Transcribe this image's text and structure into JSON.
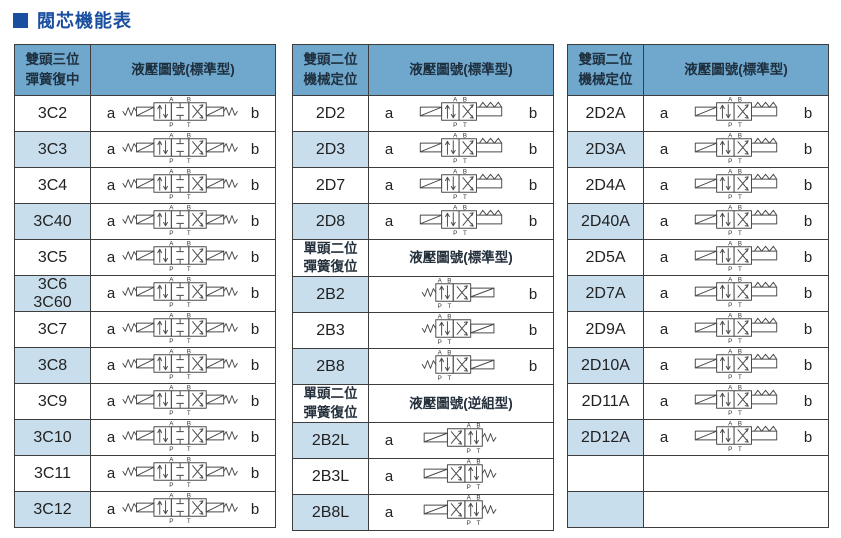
{
  "title": {
    "text": "閥芯機能表"
  },
  "colors": {
    "title_blue": "#1A4E9E",
    "header_bg": "#6FA7CD",
    "header_text": "#1E2F3E",
    "alt_row_bg": "#C8DEED",
    "border": "#3D3D3D"
  },
  "port_labels": {
    "top_left": "A",
    "top_right": "B",
    "bottom_left": "P",
    "bottom_right": "T"
  },
  "tables": [
    {
      "name": "table-three-position",
      "sections": [
        {
          "style": "blue",
          "header": {
            "col1": "雙頭三位\n彈簧復中",
            "col2": "液壓圖號(標準型)"
          },
          "rows": [
            {
              "code": "3C2",
              "a": "a",
              "b": "b",
              "symbol": "3pos",
              "shaded": false
            },
            {
              "code": "3C3",
              "a": "a",
              "b": "b",
              "symbol": "3pos",
              "shaded": true
            },
            {
              "code": "3C4",
              "a": "a",
              "b": "b",
              "symbol": "3pos",
              "shaded": false
            },
            {
              "code": "3C40",
              "a": "a",
              "b": "b",
              "symbol": "3pos",
              "shaded": true
            },
            {
              "code": "3C5",
              "a": "a",
              "b": "b",
              "symbol": "3pos",
              "shaded": false
            },
            {
              "code": "3C6\n3C60",
              "a": "a",
              "b": "b",
              "symbol": "3pos",
              "shaded": true
            },
            {
              "code": "3C7",
              "a": "a",
              "b": "b",
              "symbol": "3pos",
              "shaded": false
            },
            {
              "code": "3C8",
              "a": "a",
              "b": "b",
              "symbol": "3pos",
              "shaded": true
            },
            {
              "code": "3C9",
              "a": "a",
              "b": "b",
              "symbol": "3pos",
              "shaded": false
            },
            {
              "code": "3C10",
              "a": "a",
              "b": "b",
              "symbol": "3pos",
              "shaded": true
            },
            {
              "code": "3C11",
              "a": "a",
              "b": "b",
              "symbol": "3pos",
              "shaded": false
            },
            {
              "code": "3C12",
              "a": "a",
              "b": "b",
              "symbol": "3pos",
              "shaded": true
            }
          ]
        }
      ]
    },
    {
      "name": "table-two-position-mid",
      "sections": [
        {
          "style": "blue",
          "header": {
            "col1": "雙頭二位\n機械定位",
            "col2": "液壓圖號(標準型)"
          },
          "rows": [
            {
              "code": "2D2",
              "a": "a",
              "b": "b",
              "symbol": "2d",
              "shaded": false
            },
            {
              "code": "2D3",
              "a": "a",
              "b": "b",
              "symbol": "2d",
              "shaded": true
            },
            {
              "code": "2D7",
              "a": "a",
              "b": "b",
              "symbol": "2d",
              "shaded": false
            },
            {
              "code": "2D8",
              "a": "a",
              "b": "b",
              "symbol": "2d",
              "shaded": true
            }
          ]
        },
        {
          "style": "white",
          "header": {
            "col1": "單頭二位\n彈簧復位",
            "col2": "液壓圖號(標準型)"
          },
          "rows": [
            {
              "code": "2B2",
              "a": "",
              "b": "b",
              "symbol": "2b",
              "shaded": true
            },
            {
              "code": "2B3",
              "a": "",
              "b": "b",
              "symbol": "2b",
              "shaded": false
            },
            {
              "code": "2B8",
              "a": "",
              "b": "b",
              "symbol": "2b",
              "shaded": true
            }
          ]
        },
        {
          "style": "white",
          "header": {
            "col1": "單頭二位\n彈簧復位",
            "col2": "液壓圖號(逆組型)"
          },
          "rows": [
            {
              "code": "2B2L",
              "a": "a",
              "b": "",
              "symbol": "2bl",
              "shaded": true
            },
            {
              "code": "2B3L",
              "a": "a",
              "b": "",
              "symbol": "2bl",
              "shaded": false
            },
            {
              "code": "2B8L",
              "a": "a",
              "b": "",
              "symbol": "2bl",
              "shaded": true
            }
          ]
        }
      ]
    },
    {
      "name": "table-two-position-a",
      "sections": [
        {
          "style": "blue",
          "header": {
            "col1": "雙頭二位\n機械定位",
            "col2": "液壓圖號(標準型)"
          },
          "rows": [
            {
              "code": "2D2A",
              "a": "a",
              "b": "b",
              "symbol": "2d",
              "shaded": false
            },
            {
              "code": "2D3A",
              "a": "a",
              "b": "b",
              "symbol": "2d",
              "shaded": true
            },
            {
              "code": "2D4A",
              "a": "a",
              "b": "b",
              "symbol": "2d",
              "shaded": false
            },
            {
              "code": "2D40A",
              "a": "a",
              "b": "b",
              "symbol": "2d",
              "shaded": true
            },
            {
              "code": "2D5A",
              "a": "a",
              "b": "b",
              "symbol": "2d",
              "shaded": false
            },
            {
              "code": "2D7A",
              "a": "a",
              "b": "b",
              "symbol": "2d",
              "shaded": true
            },
            {
              "code": "2D9A",
              "a": "a",
              "b": "b",
              "symbol": "2d",
              "shaded": false
            },
            {
              "code": "2D10A",
              "a": "a",
              "b": "b",
              "symbol": "2d",
              "shaded": true
            },
            {
              "code": "2D11A",
              "a": "a",
              "b": "b",
              "symbol": "2d",
              "shaded": false
            },
            {
              "code": "2D12A",
              "a": "a",
              "b": "b",
              "symbol": "2d",
              "shaded": true
            },
            {
              "code": "",
              "a": "",
              "b": "",
              "symbol": "",
              "shaded": false
            },
            {
              "code": "",
              "a": "",
              "b": "",
              "symbol": "",
              "shaded": true
            }
          ]
        }
      ]
    }
  ]
}
